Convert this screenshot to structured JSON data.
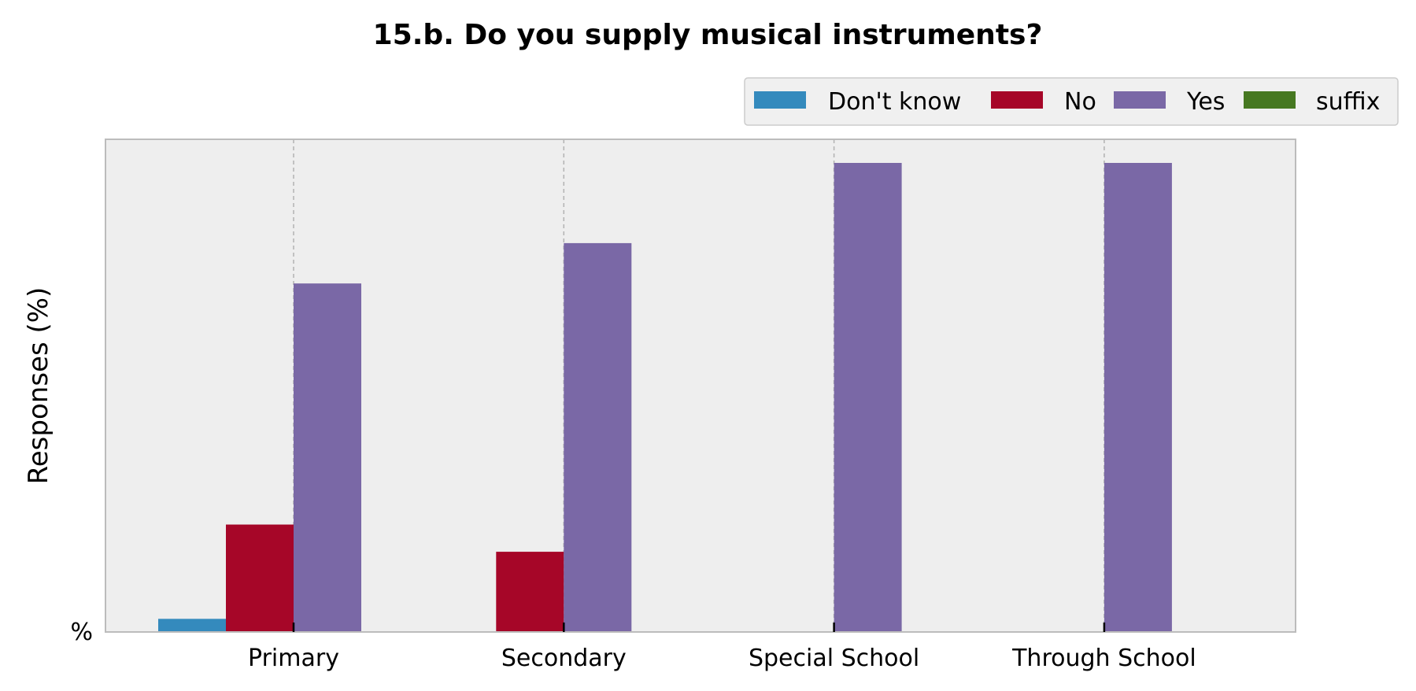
{
  "chart_data": {
    "type": "bar",
    "title": "15.b. Do you supply musical instruments?",
    "xlabel": "",
    "ylabel": "Responses (%)",
    "y_tick_label": "%",
    "ylim": [
      0,
      100
    ],
    "grid": "vertical dashed",
    "legend_position": "top-right",
    "categories": [
      "Primary",
      "Secondary",
      "Special School",
      "Through School"
    ],
    "series": [
      {
        "name": "Don't know",
        "color": "#348ABD",
        "values": [
          2.8,
          0,
          0,
          0
        ]
      },
      {
        "name": "No",
        "color": "#A60628",
        "values": [
          22.9,
          17.1,
          0,
          0
        ]
      },
      {
        "name": "Yes",
        "color": "#7A68A6",
        "values": [
          74.3,
          82.9,
          100,
          100
        ]
      },
      {
        "name": "suffix",
        "color": "#467821",
        "values": [
          0,
          0,
          0,
          0
        ]
      }
    ]
  },
  "colors": {
    "plot_background": "#EEEEEE",
    "plot_border": "#BCBCBC",
    "grid": "#B2B2B2",
    "legend_background": "#F0F0F0"
  }
}
